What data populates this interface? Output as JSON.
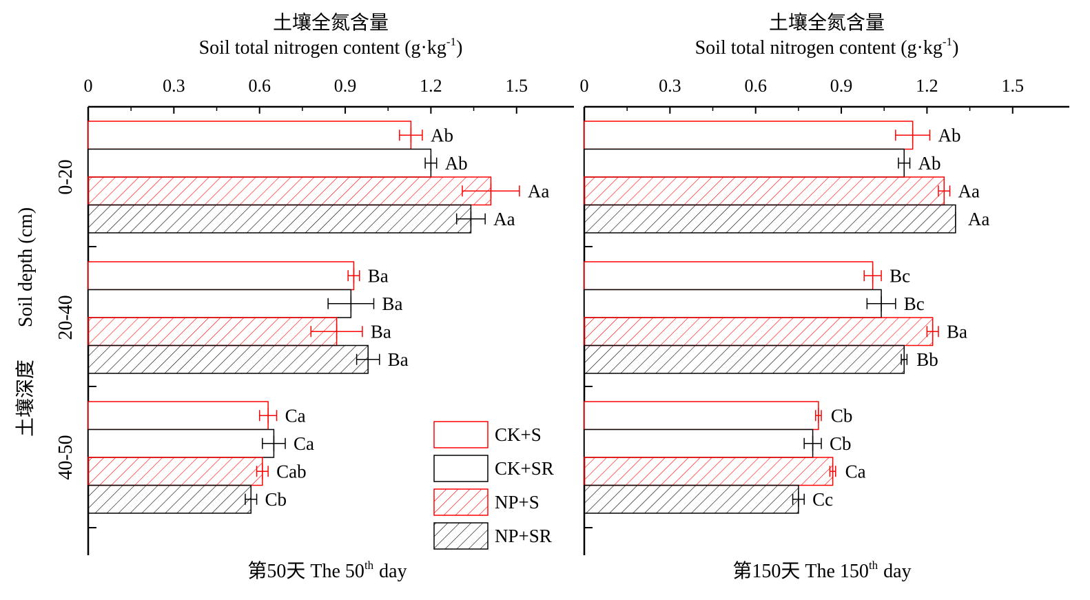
{
  "chart_data": [
    {
      "type": "bar",
      "orientation": "horizontal",
      "title_cn": "土壤全氮含量",
      "title_en": "Soil total nitrogen content (g·kg",
      "title_en_sup": "-1",
      "title_en_close": ")",
      "footer_prefix": "第50天 The 50",
      "footer_sup": "th",
      "footer_suffix": "day",
      "xlim": [
        0,
        1.65
      ],
      "xticks": [
        "0",
        "0.3",
        "0.6",
        "0.9",
        "1.2",
        "1.5"
      ],
      "xtick_values": [
        0,
        0.3,
        0.6,
        0.9,
        1.2,
        1.5
      ],
      "groups": [
        "0-20",
        "20-40",
        "40-50"
      ],
      "series": [
        {
          "name": "CK+S",
          "values": [
            1.13,
            0.93,
            0.63
          ],
          "errors": [
            0.04,
            0.02,
            0.03
          ],
          "labels": [
            "Ab",
            "Ba",
            "Ca"
          ]
        },
        {
          "name": "CK+SR",
          "values": [
            1.2,
            0.92,
            0.65
          ],
          "errors": [
            0.02,
            0.08,
            0.04
          ],
          "labels": [
            "Ab",
            "Ba",
            "Ca"
          ]
        },
        {
          "name": "NP+S",
          "values": [
            1.41,
            0.87,
            0.61
          ],
          "errors": [
            0.1,
            0.09,
            0.02
          ],
          "labels": [
            "Aa",
            "Ba",
            "Cab"
          ]
        },
        {
          "name": "NP+SR",
          "values": [
            1.34,
            0.98,
            0.57
          ],
          "errors": [
            0.05,
            0.04,
            0.02
          ],
          "labels": [
            "Aa",
            "Ba",
            "Cb"
          ]
        }
      ]
    },
    {
      "type": "bar",
      "orientation": "horizontal",
      "title_cn": "土壤全氮含量",
      "title_en": "Soil total nitrogen content (g·kg",
      "title_en_sup": "-1",
      "title_en_close": ")",
      "footer_prefix": "第150天 The 150",
      "footer_sup": "th",
      "footer_suffix": "day",
      "xlim": [
        0,
        1.65
      ],
      "xticks": [
        "0",
        "0.3",
        "0.6",
        "0.9",
        "1.2",
        "1.5"
      ],
      "xtick_values": [
        0,
        0.3,
        0.6,
        0.9,
        1.2,
        1.5
      ],
      "groups": [
        "0-20",
        "20-40",
        "40-50"
      ],
      "series": [
        {
          "name": "CK+S",
          "values": [
            1.15,
            1.01,
            0.82
          ],
          "errors": [
            0.06,
            0.03,
            0.01
          ],
          "labels": [
            "Ab",
            "Bc",
            "Cb"
          ]
        },
        {
          "name": "CK+SR",
          "values": [
            1.12,
            1.04,
            0.8
          ],
          "errors": [
            0.02,
            0.05,
            0.03
          ],
          "labels": [
            "Ab",
            "Bc",
            "Cb"
          ]
        },
        {
          "name": "NP+S",
          "values": [
            1.26,
            1.22,
            0.87
          ],
          "errors": [
            0.02,
            0.02,
            0.01
          ],
          "labels": [
            "Aa",
            "Ba",
            "Ca"
          ]
        },
        {
          "name": "NP+SR",
          "values": [
            1.3,
            1.12,
            0.75
          ],
          "errors": [
            0.0,
            0.01,
            0.02
          ],
          "labels": [
            "Aa",
            "Bb",
            "Cc"
          ]
        }
      ]
    }
  ],
  "y_axis": {
    "label_en": "Soil depth (cm)",
    "label_cn": "土壤深度"
  },
  "legend": [
    {
      "name": "CK+S",
      "stroke": "#ff0000",
      "hatch": false
    },
    {
      "name": "CK+SR",
      "stroke": "#000000",
      "hatch": false
    },
    {
      "name": "NP+S",
      "stroke": "#ff0000",
      "hatch": true
    },
    {
      "name": "NP+SR",
      "stroke": "#000000",
      "hatch": true
    }
  ],
  "colors": {
    "red": "#ff0000",
    "black": "#000000"
  }
}
